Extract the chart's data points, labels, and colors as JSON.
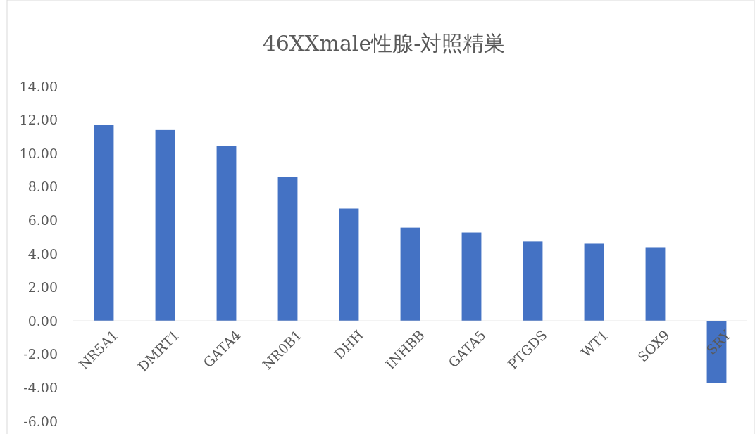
{
  "chart_data": {
    "type": "bar",
    "title": "46XXmale性腺-対照精巣",
    "categories": [
      "NR5A1",
      "DMRT1",
      "GATA4",
      "NR0B1",
      "DHH",
      "INHBB",
      "GATA5",
      "PTGDS",
      "WT1",
      "SOX9",
      "SRY"
    ],
    "values": [
      11.7,
      11.4,
      10.44,
      8.59,
      6.71,
      5.57,
      5.28,
      4.74,
      4.61,
      4.4,
      -3.73
    ],
    "color": "#4472c4",
    "ylim": [
      -6,
      14
    ],
    "yticks": [
      {
        "value": -6,
        "label": "-6.00"
      },
      {
        "value": -4,
        "label": "-4.00"
      },
      {
        "value": -2,
        "label": "-2.00"
      },
      {
        "value": 0,
        "label": "0.00"
      },
      {
        "value": 2,
        "label": "2.00"
      },
      {
        "value": 4,
        "label": "4.00"
      },
      {
        "value": 6,
        "label": "6.00"
      },
      {
        "value": 8,
        "label": "8.00"
      },
      {
        "value": 10,
        "label": "10.00"
      },
      {
        "value": 12,
        "label": "12.00"
      },
      {
        "value": 14,
        "label": "14.00"
      }
    ],
    "grid": false
  }
}
